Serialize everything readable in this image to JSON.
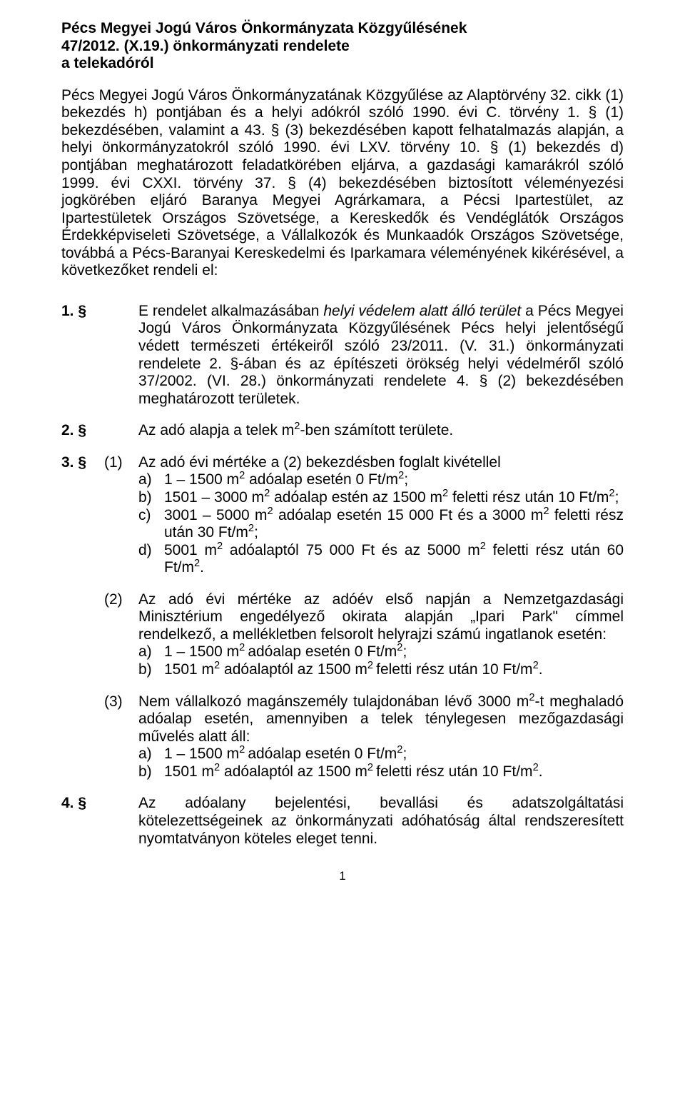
{
  "colors": {
    "text": "#000000",
    "background": "#ffffff"
  },
  "typography": {
    "body_font_family": "Arial",
    "body_fontsize_pt": 16,
    "title_weight": "bold",
    "line_height": 1.17
  },
  "title": {
    "line1": "Pécs Megyei Jogú Város Önkormányzata Közgyűlésének",
    "line2": "47/2012. (X.19.) önkormányzati rendelete",
    "line3": "a telekadóról"
  },
  "preamble": "Pécs Megyei Jogú Város Önkormányzatának Közgyűlése az Alaptörvény 32. cikk (1) bekezdés h) pontjában és a helyi adókról szóló 1990. évi C. törvény 1. § (1) bekezdésében, valamint a 43. § (3) bekezdésében kapott felhatalmazás alapján, a helyi önkormányzatokról szóló 1990. évi LXV. törvény 10. § (1) bekezdés d) pontjában meghatározott feladatkörében eljárva, a gazdasági kamarákról szóló 1999. évi CXXI. törvény 37. § (4) bekezdésében biztosított véleményezési jogkörében eljáró Baranya Megyei Agrárkamara, a Pécsi Ipartestület, az Ipartestületek Országos Szövetsége, a Kereskedők és Vendéglátók Országos Érdekképviseleti Szövetsége, a Vállalkozók és Munkaadók Országos Szövetsége, továbbá a Pécs-Baranyai Kereskedelmi és Iparkamara véleményének kikérésével, a következőket rendeli el:",
  "sections": {
    "s1": {
      "num": "1. §",
      "text_html": "E rendelet alkalmazásában <i>helyi védelem alatt álló terület</i> a Pécs Megyei Jogú Város Önkormányzata  Közgyűlésének Pécs helyi jelentőségű védett természeti értékeiről szóló 23/2011. (V. 31.) önkormányzati rendelete 2. §-ában és az építészeti örökség helyi védelméről szóló 37/2002. (VI. 28.) önkormányzati rendelete 4. § (2) bekezdésében meghatározott területek."
    },
    "s2": {
      "num": "2. §",
      "text_html": "Az adó alapja a telek m<span class=\"sup\">2</span>-ben számított területe."
    },
    "s3": {
      "num": "3. §",
      "p1": {
        "sub": "(1)",
        "intro": "Az adó évi mértéke a (2) bekezdésben foglalt kivétellel",
        "items": [
          {
            "lt": "a)",
            "txt_html": "1 – 1500 m<span class=\"sup\">2</span> adóalap esetén 0 Ft/m<span class=\"sup\">2</span>;"
          },
          {
            "lt": "b)",
            "txt_html": "1501 – 3000 m<span class=\"sup\">2</span> adóalap estén az 1500 m<span class=\"sup\">2</span> feletti rész után 10 Ft/m<span class=\"sup\">2</span>;"
          },
          {
            "lt": "c)",
            "txt_html": "3001 – 5000 m<span class=\"sup\">2</span> adóalap esetén 15 000 Ft és a 3000 m<span class=\"sup\">2</span> feletti rész után 30 Ft/m<span class=\"sup\">2</span>;"
          },
          {
            "lt": "d)",
            "txt_html": "5001 m<span class=\"sup\">2</span> adóalaptól 75 000 Ft és az 5000 m<span class=\"sup\">2</span> feletti rész után 60 Ft/m<span class=\"sup\">2</span>."
          }
        ]
      },
      "p2": {
        "sub": "(2)",
        "intro": "Az adó évi mértéke az adóév első napján a Nemzetgazdasági Minisztérium engedélyező okirata alapján „Ipari Park\" címmel rendelkező, a mellékletben felsorolt helyrajzi számú ingatlanok esetén:",
        "items": [
          {
            "lt": "a)",
            "txt_html": "1 – 1500 m<span class=\"sup\">2 </span>adóalap esetén 0 Ft/m<span class=\"sup\">2</span>;"
          },
          {
            "lt": "b)",
            "txt_html": "1501 m<span class=\"sup\">2</span> adóalaptól az 1500 m<span class=\"sup\">2 </span>feletti rész után 10 Ft/m<span class=\"sup\">2</span>."
          }
        ]
      },
      "p3": {
        "sub": "(3)",
        "intro_html": "Nem vállalkozó magánszemély tulajdonában lévő 3000 m<span class=\"sup\">2</span>-t megha­ladó adóalap esetén, amennyiben a telek ténylegesen mezőgazdasági művelés alatt áll:",
        "items": [
          {
            "lt": "a)",
            "txt_html": "1 – 1500 m<span class=\"sup\">2 </span>adóalap esetén 0 Ft/m<span class=\"sup\">2</span>;"
          },
          {
            "lt": "b)",
            "txt_html": "1501 m<span class=\"sup\">2</span> adóalaptól az 1500 m<span class=\"sup\">2 </span>feletti rész után 10 Ft/m<span class=\"sup\">2</span>."
          }
        ]
      }
    },
    "s4": {
      "num": "4. §",
      "text": "Az adóalany bejelentési, bevallási és adatszolgáltatási kötelezettségeinek az önkormányzati adóhatóság által rendszeresített nyomtatványon köteles eleget tenni."
    }
  },
  "page_number": "1"
}
